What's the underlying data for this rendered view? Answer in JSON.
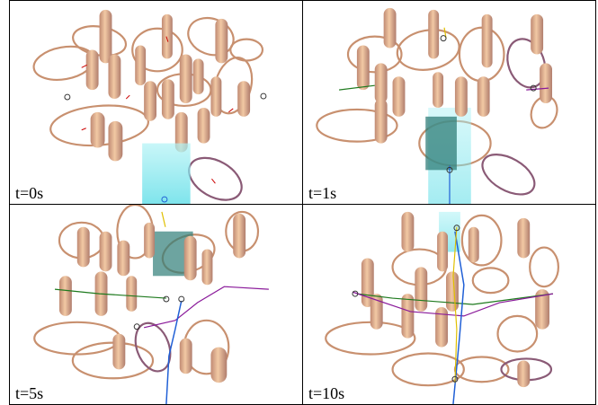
{
  "panels": [
    {
      "label": "t=0s"
    },
    {
      "label": "t=1s"
    },
    {
      "label": "t=5s"
    },
    {
      "label": "t=10s"
    }
  ],
  "colors": {
    "pillar_light": "#f2c9a4",
    "pillar_dark": "#c08a73",
    "ring": "#c8906f",
    "ring_dark": "#8a5a76",
    "tick": "#cc0000",
    "cyan_box": "#7ee7ee",
    "teal_box": "#2f7d78",
    "path_green": "#1e7a1e",
    "path_purple": "#8a1a9a",
    "path_blue": "#1f5fd6",
    "path_yellow": "#e0c000"
  }
}
